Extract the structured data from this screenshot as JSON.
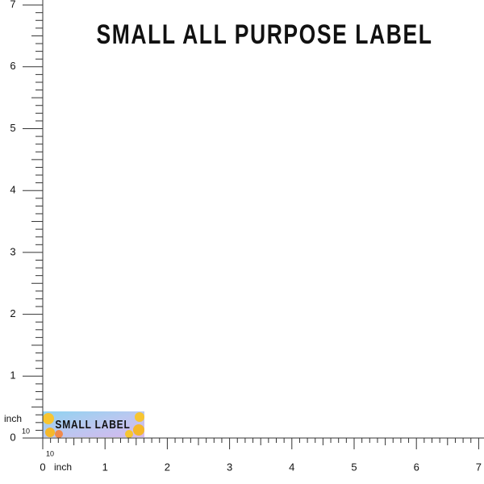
{
  "header": {
    "title": "SMALL ALL PURPOSE LABEL"
  },
  "label": {
    "text": "SMALL LABEL"
  },
  "ruler": {
    "x_labels": [
      "0",
      "1",
      "2",
      "3",
      "4",
      "5",
      "6",
      "7"
    ],
    "y_labels": [
      "0",
      "1",
      "2",
      "3",
      "4",
      "5",
      "6",
      "7"
    ],
    "x_unit": "inch",
    "x_sub": "10",
    "y_unit": "inch",
    "y_sub": "10"
  }
}
